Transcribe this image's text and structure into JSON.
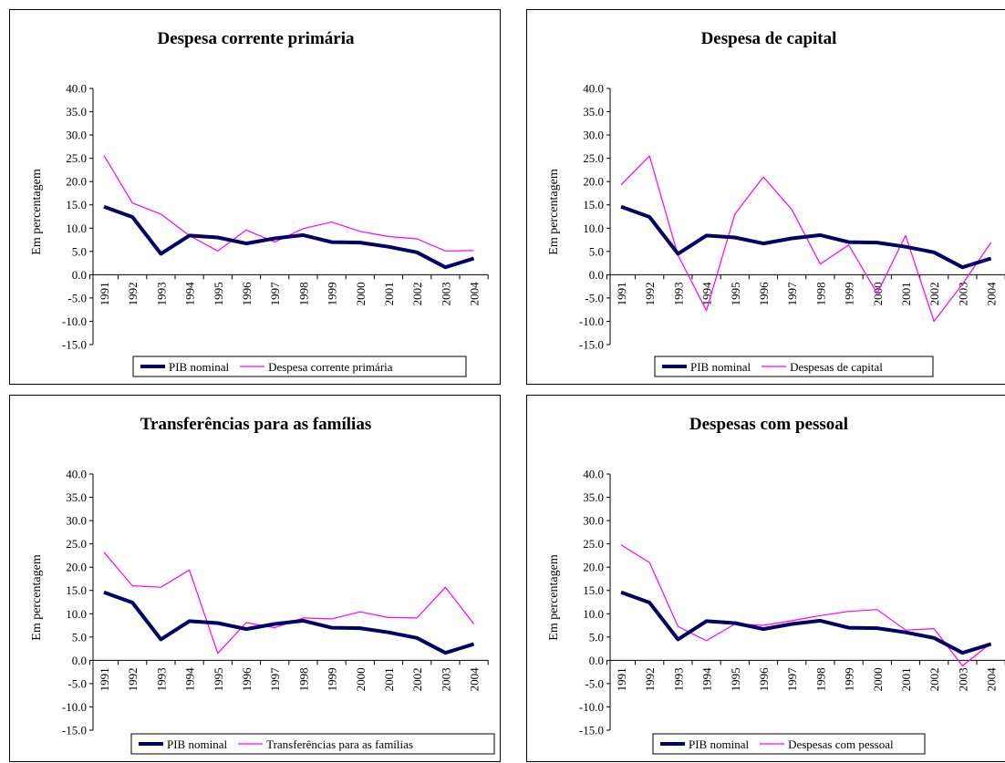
{
  "chart_data": [
    {
      "type": "line",
      "title": "Despesa corrente primária",
      "ylabel": "Em percentagem",
      "xlabel": "",
      "ylim": [
        -15,
        40
      ],
      "yticks": [
        "40.0",
        "35.0",
        "30.0",
        "25.0",
        "20.0",
        "15.0",
        "10.0",
        "5.0",
        "0.0",
        "-5.0",
        "-10.0",
        "-15.0"
      ],
      "categories": [
        "1991",
        "1992",
        "1993",
        "1994",
        "1995",
        "1996",
        "1997",
        "1998",
        "1999",
        "2000",
        "2001",
        "2002",
        "2003",
        "2004"
      ],
      "legend_position": "bottom",
      "series": [
        {
          "name": "PIB nominal",
          "color": "#000066",
          "values": [
            14.6,
            12.4,
            4.5,
            8.4,
            8.0,
            6.7,
            7.8,
            8.5,
            7.0,
            6.9,
            6.0,
            4.8,
            1.6,
            3.5
          ]
        },
        {
          "name": "Despesa corrente primária",
          "color": "#FF00FF",
          "values": [
            25.6,
            15.4,
            13.0,
            8.4,
            5.1,
            9.6,
            7.0,
            9.9,
            11.3,
            9.3,
            8.2,
            7.7,
            5.1,
            5.2
          ]
        }
      ]
    },
    {
      "type": "line",
      "title": "Despesa de capital",
      "ylabel": "Em percentagem",
      "xlabel": "",
      "ylim": [
        -15,
        40
      ],
      "yticks": [
        "40.0",
        "35.0",
        "30.0",
        "25.0",
        "20.0",
        "15.0",
        "10.0",
        "5.0",
        "0.0",
        "-5.0",
        "-10.0",
        "-15.0"
      ],
      "categories": [
        "1991",
        "1992",
        "1993",
        "1994",
        "1995",
        "1996",
        "1997",
        "1998",
        "1999",
        "2000",
        "2001",
        "2002",
        "2003",
        "2004"
      ],
      "legend_position": "bottom",
      "series": [
        {
          "name": "PIB nominal",
          "color": "#000066",
          "values": [
            14.6,
            12.4,
            4.5,
            8.4,
            8.0,
            6.7,
            7.8,
            8.5,
            7.0,
            6.9,
            6.0,
            4.8,
            1.6,
            3.5
          ]
        },
        {
          "name": "Despesas de capital",
          "color": "#FF00FF",
          "values": [
            19.3,
            25.5,
            4.2,
            -7.7,
            13.0,
            21.0,
            14.0,
            2.3,
            6.4,
            -4.0,
            8.4,
            -10.0,
            -2.0,
            6.9
          ]
        }
      ]
    },
    {
      "type": "line",
      "title": "Transferências para as famílias",
      "ylabel": "Em percentagem",
      "xlabel": "",
      "ylim": [
        -15,
        40
      ],
      "yticks": [
        "40.0",
        "35.0",
        "30.0",
        "25.0",
        "20.0",
        "15.0",
        "10.0",
        "5.0",
        "0.0",
        "-5.0",
        "-10.0",
        "-15.0"
      ],
      "categories": [
        "1991",
        "1992",
        "1993",
        "1994",
        "1995",
        "1996",
        "1997",
        "1998",
        "1999",
        "2000",
        "2001",
        "2002",
        "2003",
        "2004"
      ],
      "legend_position": "bottom",
      "series": [
        {
          "name": "PIB nominal",
          "color": "#000066",
          "values": [
            14.6,
            12.4,
            4.5,
            8.4,
            8.0,
            6.7,
            7.8,
            8.5,
            7.0,
            6.9,
            6.0,
            4.8,
            1.6,
            3.5
          ]
        },
        {
          "name": "Transferências para as famílias",
          "color": "#FF00FF",
          "values": [
            23.2,
            16.0,
            15.7,
            19.4,
            1.5,
            8.1,
            7.0,
            9.1,
            8.9,
            10.4,
            9.2,
            9.1,
            15.7,
            7.8
          ]
        }
      ]
    },
    {
      "type": "line",
      "title": "Despesas com pessoal",
      "ylabel": "Em percentagem",
      "xlabel": "",
      "ylim": [
        -15,
        40
      ],
      "yticks": [
        "40.0",
        "35.0",
        "30.0",
        "25.0",
        "20.0",
        "15.0",
        "10.0",
        "5.0",
        "0.0",
        "-5.0",
        "-10.0",
        "-15.0"
      ],
      "categories": [
        "1991",
        "1992",
        "1993",
        "1994",
        "1995",
        "1996",
        "1997",
        "1998",
        "1999",
        "2000",
        "2001",
        "2002",
        "2003",
        "2004"
      ],
      "legend_position": "bottom",
      "series": [
        {
          "name": "PIB nominal",
          "color": "#000066",
          "values": [
            14.6,
            12.4,
            4.5,
            8.4,
            8.0,
            6.7,
            7.8,
            8.5,
            7.0,
            6.9,
            6.0,
            4.8,
            1.6,
            3.5
          ]
        },
        {
          "name": "Despesas com pessoal",
          "color": "#FF00FF",
          "values": [
            24.8,
            21.0,
            7.3,
            4.2,
            7.8,
            7.5,
            8.5,
            9.6,
            10.5,
            10.9,
            6.5,
            6.8,
            -1.2,
            3.7
          ]
        }
      ]
    }
  ]
}
